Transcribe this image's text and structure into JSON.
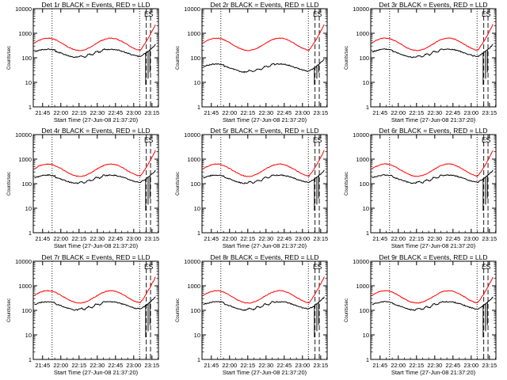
{
  "figure": {
    "description_kind": "3x3 grid of detector count-rate light curves"
  },
  "colors": {
    "events": "#000000",
    "lld": "#ff0000",
    "background": "#ffffff"
  },
  "chart_data": [
    {
      "type": "line",
      "panel": "det-1r",
      "title": "Det 1r BLACK = Events, RED = LLD",
      "xlabel": "Start Time (27-Jun-08 21:37:20)",
      "ylabel": "Counts/sec",
      "xticks": [
        "21:45",
        "22:00",
        "22:15",
        "22:30",
        "22:45",
        "23:00",
        "23:15"
      ],
      "yticks": [
        "1",
        "10",
        "100",
        "1000",
        "10000"
      ],
      "yscale": "log",
      "xlim_minutes": [
        0,
        103
      ],
      "ylim": [
        1,
        10000
      ],
      "markers": [
        "E",
        "S"
      ],
      "series": [
        {
          "name": "Events",
          "color": "#000000"
        },
        {
          "name": "LLD",
          "color": "#ff0000"
        }
      ]
    },
    {
      "type": "line",
      "panel": "det-2r",
      "title": "Det 2r BLACK = Events, RED = LLD",
      "xlabel": "Start Time (27-Jun-08 21:37:20)",
      "ylabel": "Counts/sec",
      "xticks": [
        "21:45",
        "22:00",
        "22:15",
        "22:30",
        "22:45",
        "23:00",
        "23:15"
      ],
      "yticks": [
        "1",
        "10",
        "100",
        "1000",
        "10000"
      ],
      "yscale": "log",
      "xlim_minutes": [
        0,
        103
      ],
      "ylim": [
        1,
        10000
      ],
      "markers": [
        "E",
        "S"
      ],
      "series": [
        {
          "name": "Events",
          "color": "#000000"
        },
        {
          "name": "LLD",
          "color": "#ff0000"
        }
      ]
    },
    {
      "type": "line",
      "panel": "det-3r",
      "title": "Det 3r BLACK = Events, RED = LLD",
      "xlabel": "Start Time (27-Jun-08 21:37:20)",
      "ylabel": "Counts/sec",
      "xticks": [
        "21:45",
        "22:00",
        "22:15",
        "22:30",
        "22:45",
        "23:00",
        "23:15"
      ],
      "yticks": [
        "1",
        "10",
        "100",
        "1000",
        "10000"
      ],
      "yscale": "log",
      "xlim_minutes": [
        0,
        103
      ],
      "ylim": [
        1,
        10000
      ],
      "markers": [
        "E",
        "S"
      ],
      "series": [
        {
          "name": "Events",
          "color": "#000000"
        },
        {
          "name": "LLD",
          "color": "#ff0000"
        }
      ]
    },
    {
      "type": "line",
      "panel": "det-4r",
      "title": "Det 4r BLACK = Events, RED = LLD",
      "xlabel": "Start Time (27-Jun-08 21:37:20)",
      "ylabel": "Counts/sec",
      "xticks": [
        "21:45",
        "22:00",
        "22:15",
        "22:30",
        "22:45",
        "23:00",
        "23:15"
      ],
      "yticks": [
        "1",
        "10",
        "100",
        "1000",
        "10000"
      ],
      "yscale": "log",
      "xlim_minutes": [
        0,
        103
      ],
      "ylim": [
        1,
        10000
      ],
      "markers": [
        "E",
        "S"
      ],
      "series": [
        {
          "name": "Events",
          "color": "#000000"
        },
        {
          "name": "LLD",
          "color": "#ff0000"
        }
      ]
    },
    {
      "type": "line",
      "panel": "det-5r",
      "title": "Det 5r BLACK = Events, RED = LLD",
      "xlabel": "Start Time (27-Jun-08 21:37:20)",
      "ylabel": "Counts/sec",
      "xticks": [
        "21:45",
        "22:00",
        "22:15",
        "22:30",
        "22:45",
        "23:00",
        "23:15"
      ],
      "yticks": [
        "1",
        "10",
        "100",
        "1000",
        "10000"
      ],
      "yscale": "log",
      "xlim_minutes": [
        0,
        103
      ],
      "ylim": [
        1,
        10000
      ],
      "markers": [
        "E",
        "S"
      ],
      "series": [
        {
          "name": "Events",
          "color": "#000000"
        },
        {
          "name": "LLD",
          "color": "#ff0000"
        }
      ]
    },
    {
      "type": "line",
      "panel": "det-6r",
      "title": "Det 6r BLACK = Events, RED = LLD",
      "xlabel": "Start Time (27-Jun-08 21:37:20)",
      "ylabel": "Counts/sec",
      "xticks": [
        "21:45",
        "22:00",
        "22:15",
        "22:30",
        "22:45",
        "23:00",
        "23:15"
      ],
      "yticks": [
        "1",
        "10",
        "100",
        "1000",
        "10000"
      ],
      "yscale": "log",
      "xlim_minutes": [
        0,
        103
      ],
      "ylim": [
        1,
        10000
      ],
      "markers": [
        "E",
        "S"
      ],
      "series": [
        {
          "name": "Events",
          "color": "#000000"
        },
        {
          "name": "LLD",
          "color": "#ff0000"
        }
      ]
    },
    {
      "type": "line",
      "panel": "det-7r",
      "title": "Det 7r BLACK = Events, RED = LLD",
      "xlabel": "Start Time (27-Jun-08 21:37:20)",
      "ylabel": "Counts/sec",
      "xticks": [
        "21:45",
        "22:00",
        "22:15",
        "22:30",
        "22:45",
        "23:00",
        "23:15"
      ],
      "yticks": [
        "1",
        "10",
        "100",
        "1000",
        "10000"
      ],
      "yscale": "log",
      "xlim_minutes": [
        0,
        103
      ],
      "ylim": [
        1,
        10000
      ],
      "markers": [
        "E",
        "S"
      ],
      "series": [
        {
          "name": "Events",
          "color": "#000000"
        },
        {
          "name": "LLD",
          "color": "#ff0000"
        }
      ]
    },
    {
      "type": "line",
      "panel": "det-8r",
      "title": "Det 8r BLACK = Events, RED = LLD",
      "xlabel": "Start Time (27-Jun-08 21:37:20)",
      "ylabel": "Counts/sec",
      "xticks": [
        "21:45",
        "22:00",
        "22:15",
        "22:30",
        "22:45",
        "23:00",
        "23:15"
      ],
      "yticks": [
        "1",
        "10",
        "100",
        "1000",
        "10000"
      ],
      "yscale": "log",
      "xlim_minutes": [
        0,
        103
      ],
      "ylim": [
        1,
        10000
      ],
      "markers": [
        "E",
        "S"
      ],
      "series": [
        {
          "name": "Events",
          "color": "#000000"
        },
        {
          "name": "LLD",
          "color": "#ff0000"
        }
      ]
    },
    {
      "type": "line",
      "panel": "det-9r",
      "title": "Det 9r BLACK = Events, RED = LLD",
      "xlabel": "Start Time (27-Jun-08 21:37:20)",
      "ylabel": "Counts/sec",
      "xticks": [
        "21:45",
        "22:00",
        "22:15",
        "22:30",
        "22:45",
        "23:00",
        "23:15"
      ],
      "yticks": [
        "1",
        "10",
        "100",
        "1000",
        "10000"
      ],
      "yscale": "log",
      "xlim_minutes": [
        0,
        103
      ],
      "ylim": [
        1,
        10000
      ],
      "markers": [
        "E",
        "S"
      ],
      "series": [
        {
          "name": "Events",
          "color": "#000000"
        },
        {
          "name": "LLD",
          "color": "#ff0000"
        }
      ]
    }
  ]
}
